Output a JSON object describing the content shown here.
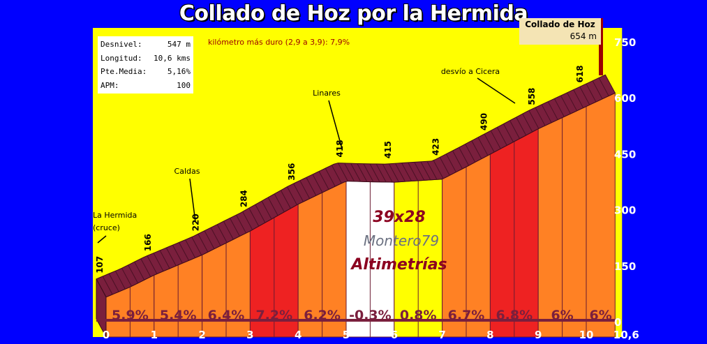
{
  "title": "Collado de Hoz por la Hermida",
  "stats": [
    {
      "label": "Desnivel:",
      "value": "547 m"
    },
    {
      "label": "Longitud:",
      "value": "10,6 kms"
    },
    {
      "label": "Pte.Media:",
      "value": "5,16%"
    },
    {
      "label": "APM:",
      "value": "100"
    }
  ],
  "hardest_km": "kilómetro más duro (2,9 a 3,9):   7,9%",
  "summit": {
    "name": "Collado de Hoz",
    "altitude": "654 m"
  },
  "watermark": {
    "line1": "39x28",
    "line2": "Montero79",
    "line3": "Altimetrías"
  },
  "colors": {
    "background": "#0000ff",
    "sky": "#ffff00",
    "road": "#7a1f3d",
    "orange": "#ff8124",
    "red": "#ee2222",
    "yellow": "#ffff00",
    "white": "#ffffff",
    "axis_text": "#ffffff",
    "summit_marker": "#9b0000"
  },
  "chart_data": {
    "type": "area",
    "xlabel": "",
    "ylabel": "",
    "xlim": [
      0,
      10.6
    ],
    "ylim": [
      0,
      750
    ],
    "x_ticks": [
      "0",
      "1",
      "2",
      "3",
      "4",
      "5",
      "6",
      "7",
      "8",
      "9",
      "10",
      "10,6"
    ],
    "x_tick_values": [
      0,
      1,
      2,
      3,
      4,
      5,
      6,
      7,
      8,
      9,
      10,
      10.6
    ],
    "y_ticks": [
      0,
      150,
      300,
      450,
      600,
      750
    ],
    "profile": {
      "x": [
        0,
        0.5,
        1,
        1.5,
        2,
        2.5,
        3,
        3.5,
        4,
        4.5,
        5,
        5.5,
        6,
        6.5,
        7,
        7.5,
        8,
        8.5,
        9,
        9.5,
        10,
        10.6
      ],
      "y": [
        107,
        134,
        166,
        193,
        220,
        252,
        284,
        320,
        356,
        387,
        418,
        416,
        415,
        419,
        423,
        456,
        490,
        524,
        558,
        588,
        618,
        654
      ]
    },
    "altitude_labels": [
      {
        "x": 0,
        "label": "107"
      },
      {
        "x": 1,
        "label": "166"
      },
      {
        "x": 2,
        "label": "220"
      },
      {
        "x": 3,
        "label": "284"
      },
      {
        "x": 4,
        "label": "356"
      },
      {
        "x": 5,
        "label": "418"
      },
      {
        "x": 6,
        "label": "415"
      },
      {
        "x": 7,
        "label": "423"
      },
      {
        "x": 8,
        "label": "490"
      },
      {
        "x": 9,
        "label": "558"
      },
      {
        "x": 10,
        "label": "618"
      }
    ],
    "segments": [
      {
        "from": 0,
        "to": 1,
        "gradient": "5,9%",
        "color": "orange"
      },
      {
        "from": 1,
        "to": 2,
        "gradient": "5,4%",
        "color": "orange"
      },
      {
        "from": 2,
        "to": 3,
        "gradient": "6,4%",
        "color": "orange"
      },
      {
        "from": 3,
        "to": 4,
        "gradient": "7,2%",
        "color": "red"
      },
      {
        "from": 4,
        "to": 5,
        "gradient": "6,2%",
        "color": "orange"
      },
      {
        "from": 5,
        "to": 6,
        "gradient": "-0,3%",
        "color": "white"
      },
      {
        "from": 6,
        "to": 7,
        "gradient": "0,8%",
        "color": "yellow"
      },
      {
        "from": 7,
        "to": 8,
        "gradient": "6,7%",
        "color": "orange"
      },
      {
        "from": 8,
        "to": 9,
        "gradient": "6,8%",
        "color": "red"
      },
      {
        "from": 9,
        "to": 10,
        "gradient": "6%",
        "color": "orange"
      },
      {
        "from": 10,
        "to": 10.6,
        "gradient": "6%",
        "color": "orange"
      }
    ],
    "place_labels": [
      {
        "name": "La Hermida",
        "name2": "(cruce)",
        "x": 0
      },
      {
        "name": "Caldas",
        "x": 1.8
      },
      {
        "name": "Linares",
        "x": 5
      },
      {
        "name": "desvío a Cicera",
        "x": 8.6
      }
    ]
  }
}
